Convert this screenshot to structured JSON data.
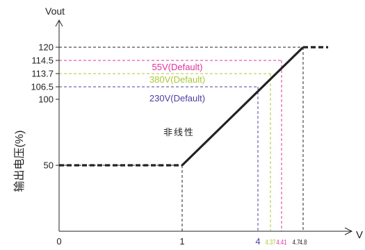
{
  "chart_data": {
    "type": "line",
    "ylabel_top": "Vout",
    "ylabel_side": "输出电压(%)",
    "xlabel": "V",
    "region_label": "非线性",
    "xlim": [
      0,
      4.8
    ],
    "ylim": [
      0,
      120
    ],
    "x_ticks": [
      {
        "value": 0,
        "label": "0",
        "color": "#222222"
      },
      {
        "value": 1,
        "label": "1",
        "color": "#222222"
      },
      {
        "value": 4,
        "label": "4",
        "color": "#4a3fa0"
      },
      {
        "value": 4.37,
        "label": "4.37",
        "color": "#a8c934"
      },
      {
        "value": 4.41,
        "label": "4.41",
        "color": "#e0309a"
      },
      {
        "value": 4.7,
        "label": "4.7",
        "color": "#222222"
      },
      {
        "value": 4.8,
        "label": "4.8",
        "color": "#222222"
      }
    ],
    "y_ticks": [
      {
        "value": 50,
        "label": "50"
      },
      {
        "value": 100,
        "label": "100"
      },
      {
        "value": 106.5,
        "label": "106.5"
      },
      {
        "value": 113.7,
        "label": "113.7"
      },
      {
        "value": 114.5,
        "label": "114.5"
      },
      {
        "value": 120,
        "label": "120"
      }
    ],
    "series": [
      {
        "points": [
          {
            "x": 0,
            "y": 50,
            "style": "dashed"
          },
          {
            "x": 1,
            "y": 50,
            "style": "solid"
          },
          {
            "x": 4.8,
            "y": 120,
            "style": "dashed"
          },
          {
            "x": 5.3,
            "y": 120
          }
        ],
        "color": "#222222"
      }
    ],
    "reference_lines": [
      {
        "label": "55V(Default)",
        "x": 4.41,
        "y": 114.5,
        "color": "#e0309a"
      },
      {
        "label": "380V(Default)",
        "x": 4.37,
        "y": 113.7,
        "color": "#a8c934"
      },
      {
        "label": "230V(Default)",
        "x": 4.0,
        "y": 106.5,
        "color": "#4a3fa0"
      },
      {
        "label": "",
        "x": 4.8,
        "y": 120,
        "color": "#222222"
      },
      {
        "label": "",
        "x": 4.7,
        "y": 0,
        "color": "#222222"
      },
      {
        "label": "",
        "x": 1,
        "y": 50,
        "color": "#222222"
      }
    ],
    "grid": false
  }
}
